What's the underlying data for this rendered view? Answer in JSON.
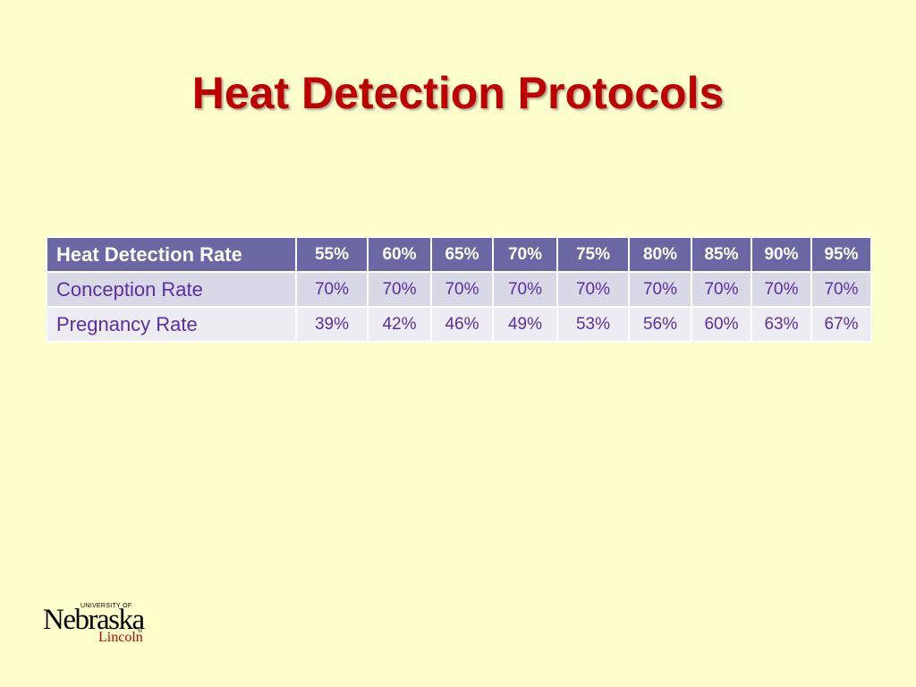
{
  "slide": {
    "title": "Heat Detection Protocols"
  },
  "table": {
    "header": {
      "label": "Heat Detection Rate",
      "values": [
        "55%",
        "60%",
        "65%",
        "70%",
        "75%",
        "80%",
        "85%",
        "90%",
        "95%"
      ]
    },
    "rows": [
      {
        "label": "Conception Rate",
        "values": [
          "70%",
          "70%",
          "70%",
          "70%",
          "70%",
          "70%",
          "70%",
          "70%",
          "70%"
        ]
      },
      {
        "label": "Pregnancy Rate",
        "values": [
          "39%",
          "42%",
          "46%",
          "49%",
          "53%",
          "56%",
          "60%",
          "63%",
          "67%"
        ]
      }
    ]
  },
  "logo": {
    "small_text": "UNIVERSITY OF",
    "main_text": "Nebraska",
    "sub_text": "Lincoln",
    "mark": "®"
  },
  "colors": {
    "background": "#ffffcc",
    "title": "#c00000",
    "header_fill": "#6a68a4",
    "row_fill_1": "#d8d8e6",
    "row_fill_2": "#ececf2",
    "row_text": "#5c2fa0"
  }
}
